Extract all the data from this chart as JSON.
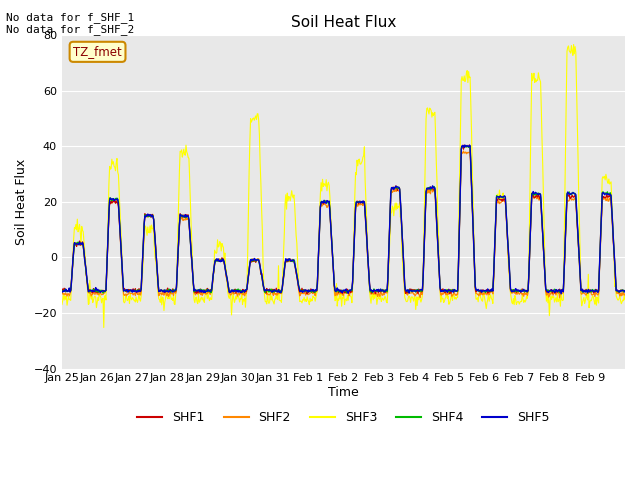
{
  "title": "Soil Heat Flux",
  "xlabel": "Time",
  "ylabel": "Soil Heat Flux",
  "ylim": [
    -40,
    80
  ],
  "yticks": [
    -40,
    -20,
    0,
    20,
    40,
    60,
    80
  ],
  "plot_bg": "#e8e8e8",
  "fig_bg": "#ffffff",
  "no_data_line1": "No data for f_SHF_1",
  "no_data_line2": "No data for f_SHF_2",
  "tz_label": "TZ_fmet",
  "series_colors": {
    "SHF1": "#cc0000",
    "SHF2": "#ff8800",
    "SHF3": "#ffff00",
    "SHF4": "#00bb00",
    "SHF5": "#0000cc"
  },
  "x_tick_labels": [
    "Jan 25",
    "Jan 26",
    "Jan 27",
    "Jan 28",
    "Jan 29",
    "Jan 30",
    "Jan 31",
    "Feb 1",
    "Feb 2",
    "Feb 3",
    "Feb 4",
    "Feb 5",
    "Feb 6",
    "Feb 7",
    "Feb 8",
    "Feb 9"
  ],
  "n_days": 16
}
